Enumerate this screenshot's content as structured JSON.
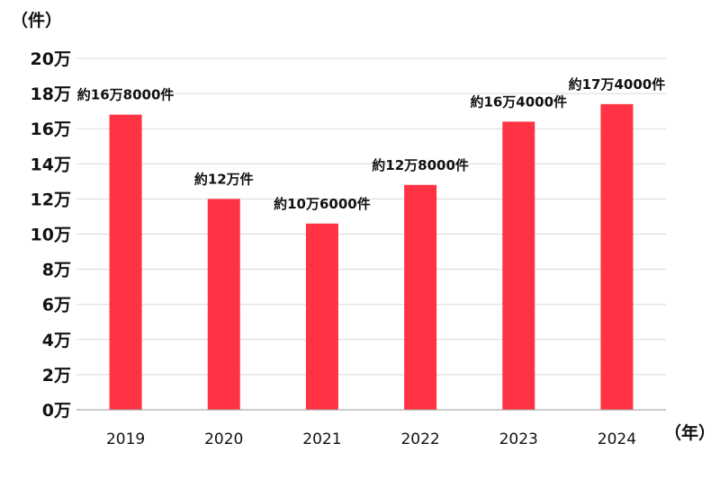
{
  "chart_data": {
    "type": "bar",
    "categories": [
      "2019",
      "2020",
      "2021",
      "2022",
      "2023",
      "2024"
    ],
    "values": [
      168000,
      120000,
      106000,
      128000,
      164000,
      174000
    ],
    "data_labels": [
      "約16万8000件",
      "約12万件",
      "約10万6000件",
      "約12万8000件",
      "約16万4000件",
      "約17万4000件"
    ],
    "ylim": [
      0,
      200000
    ],
    "y_ticks": [
      0,
      20000,
      40000,
      60000,
      80000,
      100000,
      120000,
      140000,
      160000,
      180000,
      200000
    ],
    "y_tick_labels": [
      "0万",
      "2万",
      "4万",
      "6万",
      "8万",
      "10万",
      "12万",
      "14万",
      "16万",
      "18万",
      "20万"
    ],
    "y_unit_label": "（件）",
    "x_unit_label": "（年）",
    "grid": true,
    "bar_color": "#ff3344"
  }
}
